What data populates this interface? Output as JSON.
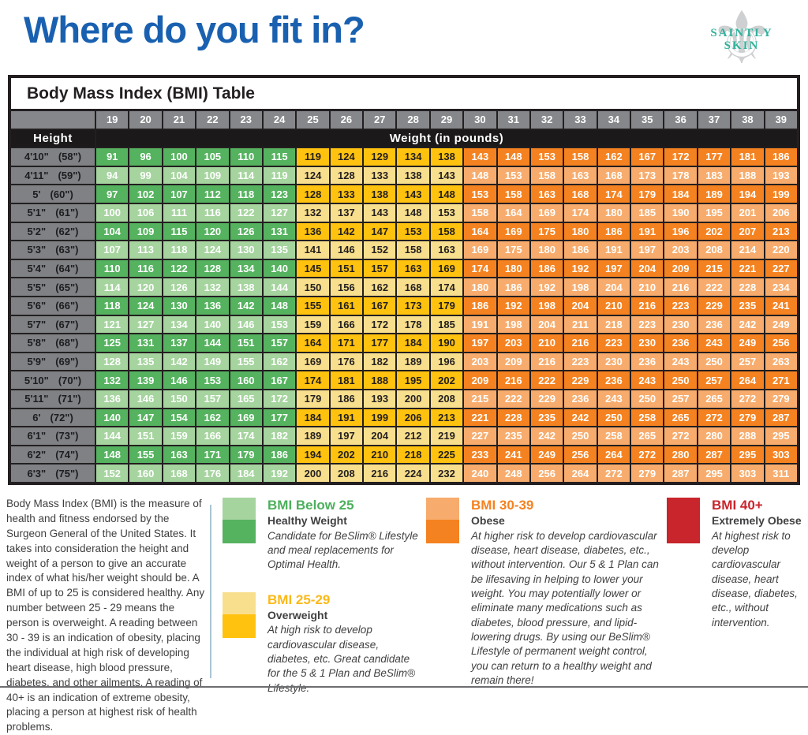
{
  "page": {
    "title": "Where do you fit in?",
    "logo_line1": "SAINTLY",
    "logo_line2": "SKIN"
  },
  "table": {
    "title": "Body Mass Index (BMI) Table",
    "height_label": "Height",
    "weight_label": "Weight (in pounds)"
  },
  "colors": {
    "title_blue": "#1961B0",
    "logo_teal": "#2FB29B",
    "green_dark": "#55B25F",
    "green_light": "#A5D49E",
    "yellow_dark": "#FFC20E",
    "yellow_light": "#F8DF8D",
    "orange_dark": "#F58220",
    "orange_light": "#F7AC6D",
    "red": "#C9252C",
    "text_on_green": "#FFFFFF",
    "text_on_yellow": "#231F20",
    "text_on_orange": "#FFFFFF"
  },
  "chart_data": {
    "type": "table",
    "title": "Body Mass Index (BMI) Table",
    "row_header": "Height",
    "column_header": "Weight (in pounds)",
    "bmi": [
      19,
      20,
      21,
      22,
      23,
      24,
      25,
      26,
      27,
      28,
      29,
      30,
      31,
      32,
      33,
      34,
      35,
      36,
      37,
      38,
      39
    ],
    "category_ranges": {
      "healthy": "BMI 19-24 (green)",
      "overweight": "BMI 25-29 (yellow)",
      "obese": "BMI 30-39 (orange)"
    },
    "rows": [
      {
        "ft": "4'10\"",
        "in": "(58\")",
        "values": [
          91,
          96,
          100,
          105,
          110,
          115,
          119,
          124,
          129,
          134,
          138,
          143,
          148,
          153,
          158,
          162,
          167,
          172,
          177,
          181,
          186
        ]
      },
      {
        "ft": "4'11\"",
        "in": "(59\")",
        "values": [
          94,
          99,
          104,
          109,
          114,
          119,
          124,
          128,
          133,
          138,
          143,
          148,
          153,
          158,
          163,
          168,
          173,
          178,
          183,
          188,
          193
        ]
      },
      {
        "ft": "5'",
        "in": "(60\")",
        "values": [
          97,
          102,
          107,
          112,
          118,
          123,
          128,
          133,
          138,
          143,
          148,
          153,
          158,
          163,
          168,
          174,
          179,
          184,
          189,
          194,
          199
        ]
      },
      {
        "ft": "5'1\"",
        "in": "(61\")",
        "values": [
          100,
          106,
          111,
          116,
          122,
          127,
          132,
          137,
          143,
          148,
          153,
          158,
          164,
          169,
          174,
          180,
          185,
          190,
          195,
          201,
          206
        ]
      },
      {
        "ft": "5'2\"",
        "in": "(62\")",
        "values": [
          104,
          109,
          115,
          120,
          126,
          131,
          136,
          142,
          147,
          153,
          158,
          164,
          169,
          175,
          180,
          186,
          191,
          196,
          202,
          207,
          213
        ]
      },
      {
        "ft": "5'3\"",
        "in": "(63\")",
        "values": [
          107,
          113,
          118,
          124,
          130,
          135,
          141,
          146,
          152,
          158,
          163,
          169,
          175,
          180,
          186,
          191,
          197,
          203,
          208,
          214,
          220
        ]
      },
      {
        "ft": "5'4\"",
        "in": "(64\")",
        "values": [
          110,
          116,
          122,
          128,
          134,
          140,
          145,
          151,
          157,
          163,
          169,
          174,
          180,
          186,
          192,
          197,
          204,
          209,
          215,
          221,
          227
        ]
      },
      {
        "ft": "5'5\"",
        "in": "(65\")",
        "values": [
          114,
          120,
          126,
          132,
          138,
          144,
          150,
          156,
          162,
          168,
          174,
          180,
          186,
          192,
          198,
          204,
          210,
          216,
          222,
          228,
          234
        ]
      },
      {
        "ft": "5'6\"",
        "in": "(66\")",
        "values": [
          118,
          124,
          130,
          136,
          142,
          148,
          155,
          161,
          167,
          173,
          179,
          186,
          192,
          198,
          204,
          210,
          216,
          223,
          229,
          235,
          241
        ]
      },
      {
        "ft": "5'7\"",
        "in": "(67\")",
        "values": [
          121,
          127,
          134,
          140,
          146,
          153,
          159,
          166,
          172,
          178,
          185,
          191,
          198,
          204,
          211,
          218,
          223,
          230,
          236,
          242,
          249
        ]
      },
      {
        "ft": "5'8\"",
        "in": "(68\")",
        "values": [
          125,
          131,
          137,
          144,
          151,
          157,
          164,
          171,
          177,
          184,
          190,
          197,
          203,
          210,
          216,
          223,
          230,
          236,
          243,
          249,
          256
        ]
      },
      {
        "ft": "5'9\"",
        "in": "(69\")",
        "values": [
          128,
          135,
          142,
          149,
          155,
          162,
          169,
          176,
          182,
          189,
          196,
          203,
          209,
          216,
          223,
          230,
          236,
          243,
          250,
          257,
          263
        ]
      },
      {
        "ft": "5'10\"",
        "in": "(70\")",
        "values": [
          132,
          139,
          146,
          153,
          160,
          167,
          174,
          181,
          188,
          195,
          202,
          209,
          216,
          222,
          229,
          236,
          243,
          250,
          257,
          264,
          271
        ]
      },
      {
        "ft": "5'11\"",
        "in": "(71\")",
        "values": [
          136,
          146,
          150,
          157,
          165,
          172,
          179,
          186,
          193,
          200,
          208,
          215,
          222,
          229,
          236,
          243,
          250,
          257,
          265,
          272,
          279
        ]
      },
      {
        "ft": "6'",
        "in": "(72\")",
        "values": [
          140,
          147,
          154,
          162,
          169,
          177,
          184,
          191,
          199,
          206,
          213,
          221,
          228,
          235,
          242,
          250,
          258,
          265,
          272,
          279,
          287
        ]
      },
      {
        "ft": "6'1\"",
        "in": "(73\")",
        "values": [
          144,
          151,
          159,
          166,
          174,
          182,
          189,
          197,
          204,
          212,
          219,
          227,
          235,
          242,
          250,
          258,
          265,
          272,
          280,
          288,
          295
        ]
      },
      {
        "ft": "6'2\"",
        "in": "(74\")",
        "values": [
          148,
          155,
          163,
          171,
          179,
          186,
          194,
          202,
          210,
          218,
          225,
          233,
          241,
          249,
          256,
          264,
          272,
          280,
          287,
          295,
          303
        ]
      },
      {
        "ft": "6'3\"",
        "in": "(75\")",
        "values": [
          152,
          160,
          168,
          176,
          184,
          192,
          200,
          208,
          216,
          224,
          232,
          240,
          248,
          256,
          264,
          272,
          279,
          287,
          295,
          303,
          311
        ]
      }
    ]
  },
  "about": {
    "text": "Body Mass Index (BMI) is the measure of health and fitness endorsed by the Surgeon General of the United States. It takes into consideration the height and weight of a person to give an accurate index of what his/her weight should be. A BMI of up to 25 is considered healthy. Any number between 25 - 29 means the person is overweight. A reading between 30 - 39 is an indication of obesity, placing the individual at high risk of developing heart disease, high blood pressure, diabetes, and other ailments. A reading of 40+ is an indication of extreme obesity, placing a person at highest risk of health problems."
  },
  "legend": [
    {
      "title": "BMI Below 25",
      "subtitle": "Healthy Weight",
      "description": "Candidate for BeSlim® Lifestyle and meal replacements for Optimal Health.",
      "title_color": "#4CB05C",
      "swatch_top": "#A5D49E",
      "swatch_bottom": "#55B25F"
    },
    {
      "title": "BMI 25-29",
      "subtitle": "Overweight",
      "description": "At high risk to develop cardiovascular disease, diabetes, etc. Great candidate for the 5 & 1 Plan and BeSlim® Lifestyle.",
      "title_color": "#FBB918",
      "swatch_top": "#F8DF8D",
      "swatch_bottom": "#FFC20E"
    },
    {
      "title": "BMI 30-39",
      "subtitle": "Obese",
      "description": "At higher risk to develop cardiovascular disease, heart disease, diabetes, etc., without intervention. Our 5 & 1 Plan can be lifesaving in helping to lower your weight. You may potentially lower or eliminate many medications such as diabetes, blood pressure, and lipid-lowering drugs. By using our BeSlim® Lifestyle of permanent weight control, you can return to a healthy weight and remain there!",
      "title_color": "#F58220",
      "swatch_top": "#F7AC6D",
      "swatch_bottom": "#F58220"
    },
    {
      "title": "BMI 40+",
      "subtitle": "Extremely Obese",
      "description": "At highest risk to develop cardiovascular disease, heart disease, diabetes, etc., without intervention.",
      "title_color": "#C9252C",
      "swatch_top": "#C9252C",
      "swatch_bottom": "#C9252C"
    }
  ]
}
